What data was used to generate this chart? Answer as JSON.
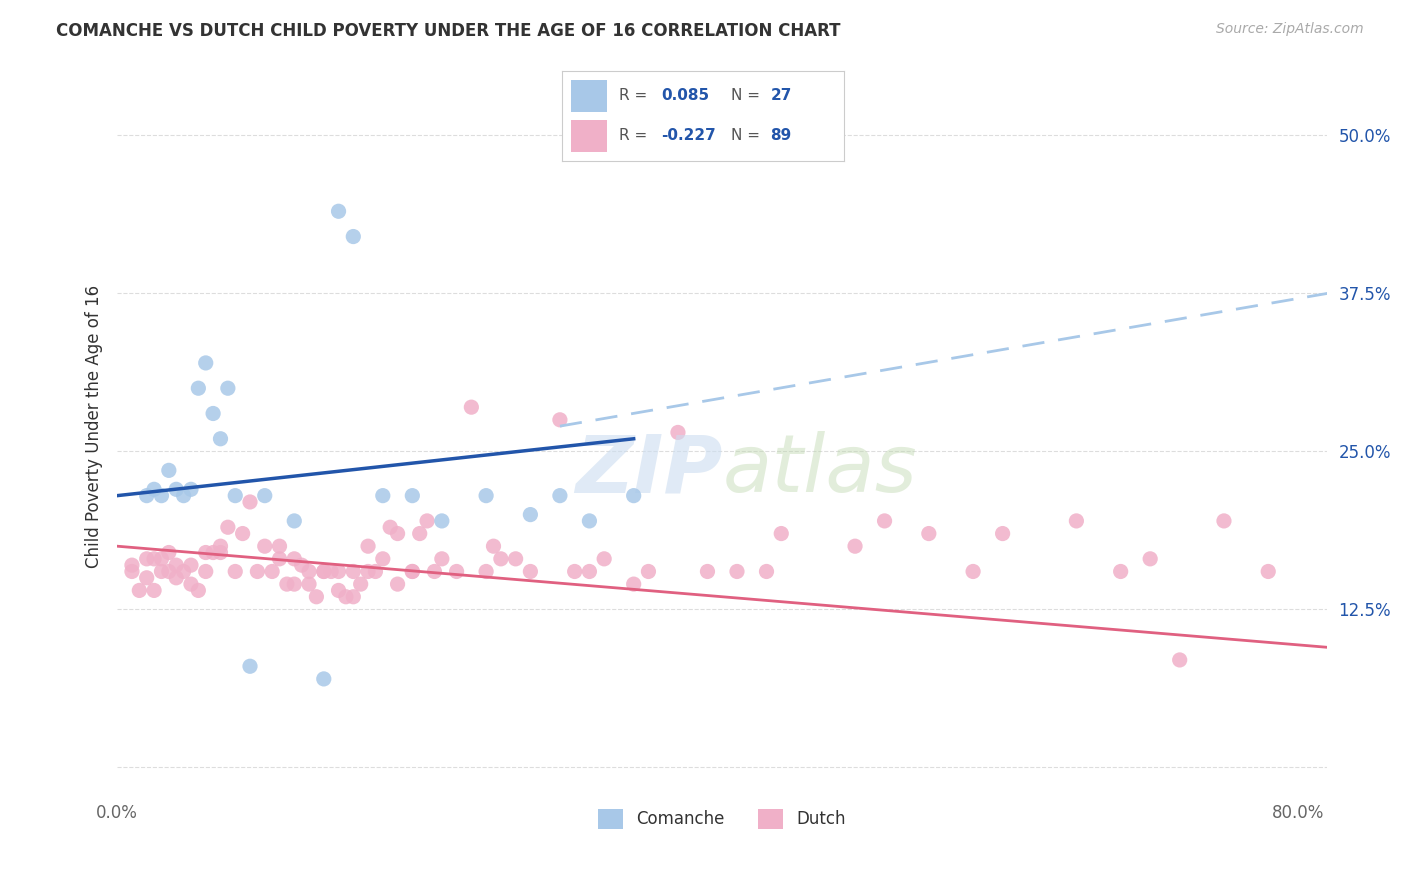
{
  "title": "COMANCHE VS DUTCH CHILD POVERTY UNDER THE AGE OF 16 CORRELATION CHART",
  "source": "Source: ZipAtlas.com",
  "ylabel": "Child Poverty Under the Age of 16",
  "xlim": [
    0.0,
    0.82
  ],
  "ylim": [
    -0.02,
    0.56
  ],
  "yticks": [
    0.0,
    0.125,
    0.25,
    0.375,
    0.5
  ],
  "ytick_labels": [
    "",
    "12.5%",
    "25.0%",
    "37.5%",
    "50.0%"
  ],
  "xticks": [
    0.0,
    0.2,
    0.4,
    0.6,
    0.8
  ],
  "xtick_labels": [
    "0.0%",
    "",
    "",
    "",
    "80.0%"
  ],
  "comanche_color": "#a8c8e8",
  "dutch_color": "#f0b0c8",
  "comanche_line_color": "#2255aa",
  "dutch_line_color": "#e06080",
  "trend_line_dashed_color": "#a8c8e8",
  "background_color": "#ffffff",
  "grid_color": "#dddddd",
  "legend_R_color": "#2255aa",
  "comanche_R": 0.085,
  "comanche_N": 27,
  "dutch_R": -0.227,
  "dutch_N": 89,
  "comanche_x": [
    0.02,
    0.025,
    0.03,
    0.035,
    0.04,
    0.045,
    0.05,
    0.055,
    0.06,
    0.065,
    0.07,
    0.075,
    0.08,
    0.09,
    0.1,
    0.12,
    0.14,
    0.15,
    0.16,
    0.18,
    0.2,
    0.22,
    0.25,
    0.28,
    0.3,
    0.32,
    0.35
  ],
  "comanche_y": [
    0.215,
    0.22,
    0.215,
    0.235,
    0.22,
    0.215,
    0.22,
    0.3,
    0.32,
    0.28,
    0.26,
    0.3,
    0.215,
    0.08,
    0.215,
    0.195,
    0.07,
    0.44,
    0.42,
    0.215,
    0.215,
    0.195,
    0.215,
    0.2,
    0.215,
    0.195,
    0.215
  ],
  "dutch_x": [
    0.01,
    0.01,
    0.015,
    0.02,
    0.02,
    0.025,
    0.025,
    0.03,
    0.03,
    0.035,
    0.035,
    0.04,
    0.04,
    0.045,
    0.05,
    0.05,
    0.055,
    0.06,
    0.06,
    0.065,
    0.07,
    0.07,
    0.075,
    0.08,
    0.085,
    0.09,
    0.095,
    0.1,
    0.105,
    0.11,
    0.11,
    0.115,
    0.12,
    0.12,
    0.125,
    0.13,
    0.13,
    0.135,
    0.14,
    0.14,
    0.145,
    0.15,
    0.15,
    0.155,
    0.16,
    0.16,
    0.165,
    0.17,
    0.17,
    0.175,
    0.18,
    0.185,
    0.19,
    0.19,
    0.2,
    0.2,
    0.205,
    0.21,
    0.215,
    0.22,
    0.23,
    0.24,
    0.25,
    0.255,
    0.26,
    0.27,
    0.28,
    0.3,
    0.31,
    0.32,
    0.33,
    0.35,
    0.36,
    0.38,
    0.4,
    0.42,
    0.44,
    0.45,
    0.5,
    0.52,
    0.55,
    0.58,
    0.6,
    0.65,
    0.68,
    0.7,
    0.72,
    0.75,
    0.78
  ],
  "dutch_y": [
    0.155,
    0.16,
    0.14,
    0.15,
    0.165,
    0.14,
    0.165,
    0.155,
    0.165,
    0.155,
    0.17,
    0.16,
    0.15,
    0.155,
    0.145,
    0.16,
    0.14,
    0.155,
    0.17,
    0.17,
    0.17,
    0.175,
    0.19,
    0.155,
    0.185,
    0.21,
    0.155,
    0.175,
    0.155,
    0.175,
    0.165,
    0.145,
    0.145,
    0.165,
    0.16,
    0.145,
    0.155,
    0.135,
    0.155,
    0.155,
    0.155,
    0.14,
    0.155,
    0.135,
    0.135,
    0.155,
    0.145,
    0.175,
    0.155,
    0.155,
    0.165,
    0.19,
    0.145,
    0.185,
    0.155,
    0.155,
    0.185,
    0.195,
    0.155,
    0.165,
    0.155,
    0.285,
    0.155,
    0.175,
    0.165,
    0.165,
    0.155,
    0.275,
    0.155,
    0.155,
    0.165,
    0.145,
    0.155,
    0.265,
    0.155,
    0.155,
    0.155,
    0.185,
    0.175,
    0.195,
    0.185,
    0.155,
    0.185,
    0.195,
    0.155,
    0.165,
    0.085,
    0.195,
    0.155
  ],
  "watermark_zip": "ZIP",
  "watermark_atlas": "atlas"
}
